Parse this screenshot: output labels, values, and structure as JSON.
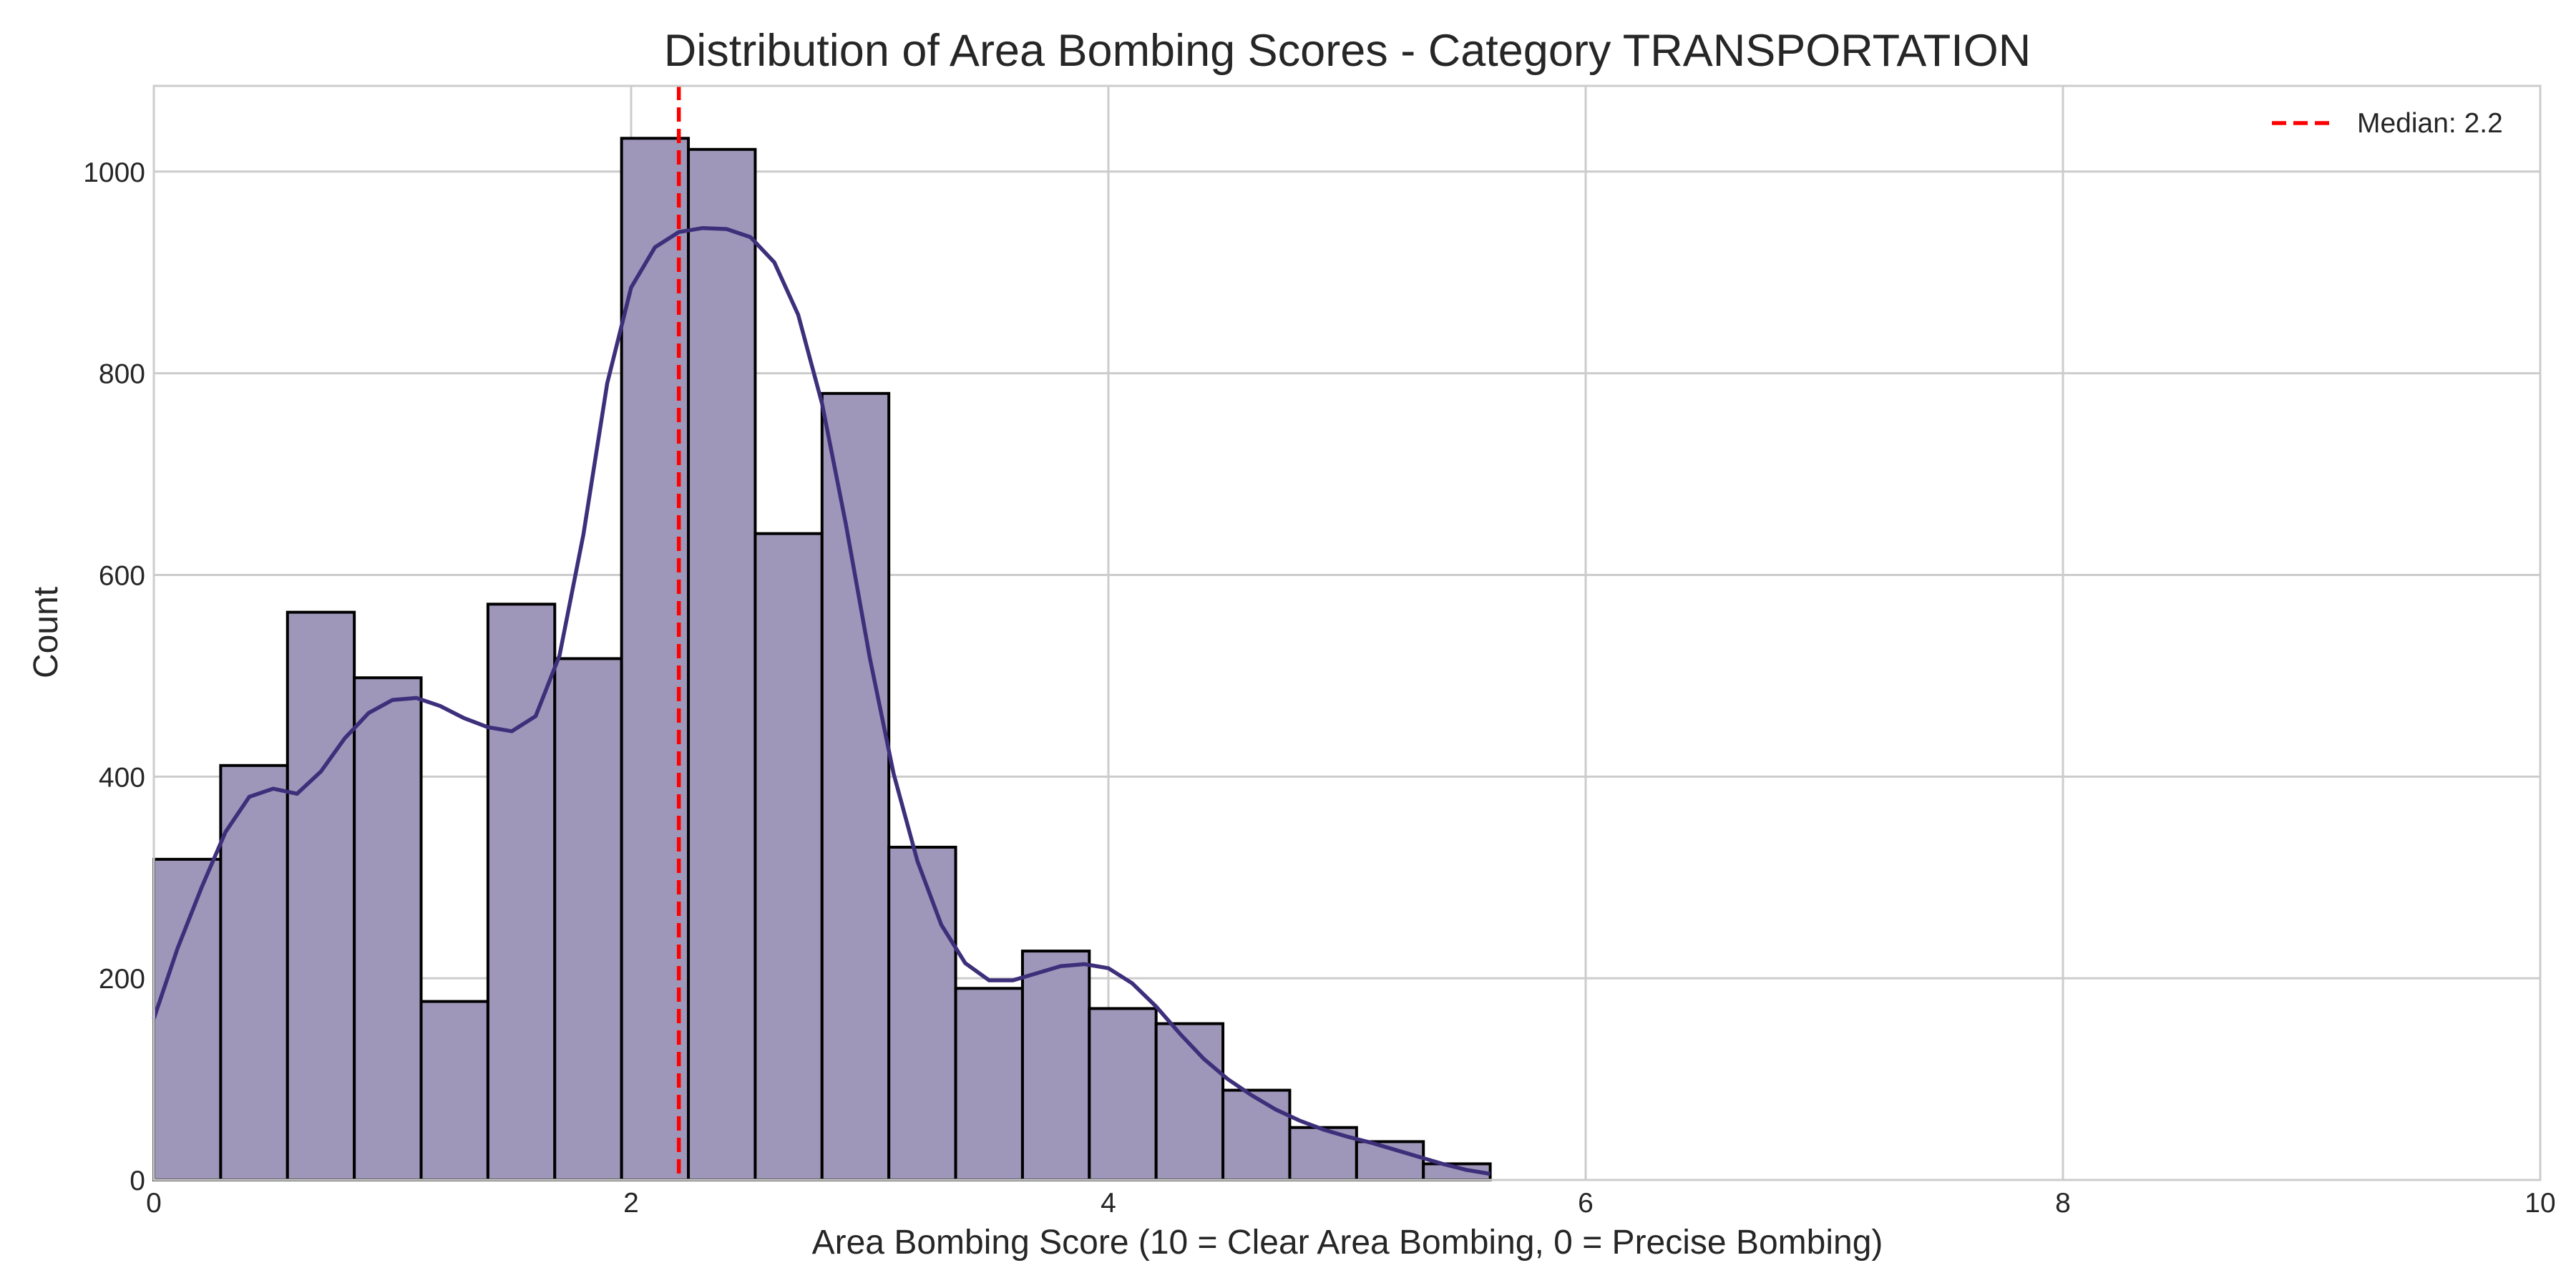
{
  "chart_data": {
    "type": "bar",
    "title": "Distribution of Area Bombing Scores - Category TRANSPORTATION",
    "xlabel": "Area Bombing Score (10 = Clear Area Bombing, 0 = Precise Bombing)",
    "ylabel": "Count",
    "xlim": [
      0,
      10
    ],
    "ylim": [
      0,
      1085
    ],
    "xticks": [
      0,
      2,
      4,
      6,
      8,
      10
    ],
    "yticks": [
      0,
      200,
      400,
      600,
      800,
      1000
    ],
    "grid": true,
    "legend_position": "top-right",
    "bin_edges": [
      0,
      0.28,
      0.56,
      0.84,
      1.12,
      1.4,
      1.68,
      1.96,
      2.24,
      2.52,
      2.8,
      3.08,
      3.36,
      3.64,
      3.92,
      4.2,
      4.48,
      4.76,
      5.04,
      5.32,
      5.6
    ],
    "values": [
      318,
      411,
      563,
      498,
      177,
      571,
      517,
      1033,
      1022,
      641,
      780,
      330,
      190,
      227,
      170,
      155,
      89,
      52,
      38,
      16
    ],
    "kde": {
      "x": [
        0,
        0.1,
        0.2,
        0.3,
        0.4,
        0.5,
        0.6,
        0.7,
        0.8,
        0.9,
        1.0,
        1.1,
        1.2,
        1.3,
        1.4,
        1.5,
        1.6,
        1.7,
        1.8,
        1.9,
        2.0,
        2.1,
        2.2,
        2.3,
        2.4,
        2.5,
        2.6,
        2.7,
        2.8,
        2.9,
        3.0,
        3.1,
        3.2,
        3.3,
        3.4,
        3.5,
        3.6,
        3.7,
        3.8,
        3.9,
        4.0,
        4.1,
        4.2,
        4.3,
        4.4,
        4.5,
        4.6,
        4.7,
        4.8,
        4.9,
        5.0,
        5.1,
        5.2,
        5.3,
        5.4,
        5.5,
        5.6
      ],
      "y": [
        160,
        230,
        290,
        345,
        380,
        388,
        383,
        405,
        438,
        463,
        476,
        478,
        470,
        458,
        449,
        445,
        460,
        520,
        640,
        790,
        885,
        925,
        940,
        944,
        943,
        935,
        910,
        858,
        770,
        650,
        518,
        403,
        316,
        253,
        215,
        198,
        198,
        205,
        212,
        214,
        210,
        195,
        172,
        145,
        120,
        100,
        84,
        70,
        59,
        50,
        43,
        37,
        30,
        23,
        16,
        10,
        6
      ]
    },
    "series": [
      {
        "name": "Median: 2.2",
        "type": "vline",
        "x": 2.2,
        "color": "#ff0000"
      }
    ],
    "colors": {
      "bar_fill": "#9f97ba",
      "bar_edge": "#000000",
      "kde_line": "#3e2f7b",
      "median": "#ff0000",
      "grid": "#cccccc"
    }
  }
}
